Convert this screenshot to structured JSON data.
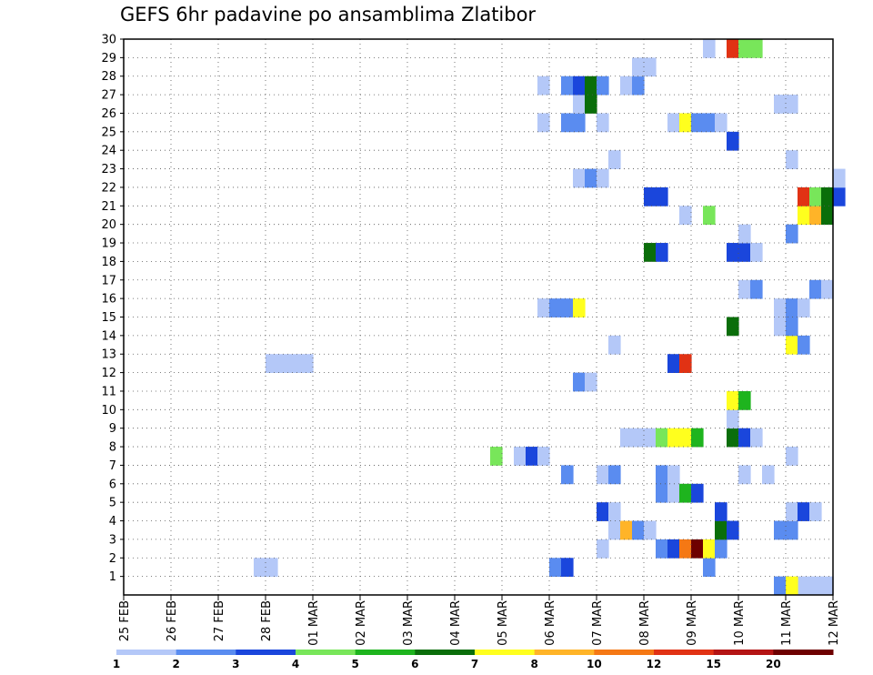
{
  "chart_data": {
    "type": "heatmap",
    "title": "GEFS 6hr padavine po ansamblima Zlatibor",
    "x_tick_labels": [
      "25 FEB",
      "26 FEB",
      "27 FEB",
      "28 FEB",
      "01 MAR",
      "02 MAR",
      "03 MAR",
      "04 MAR",
      "05 MAR",
      "06 MAR",
      "07 MAR",
      "08 MAR",
      "09 MAR",
      "10 MAR",
      "11 MAR",
      "12 MAR"
    ],
    "y_tick_labels": [
      "1",
      "2",
      "3",
      "4",
      "5",
      "6",
      "7",
      "8",
      "9",
      "10",
      "11",
      "12",
      "13",
      "14",
      "15",
      "16",
      "17",
      "18",
      "19",
      "20",
      "21",
      "22",
      "23",
      "24",
      "25",
      "26",
      "27",
      "28",
      "29",
      "30"
    ],
    "xlim_steps": [
      0,
      60
    ],
    "ylim": [
      0,
      30
    ],
    "x_step_hours": 6,
    "grid": true,
    "color_levels": {
      "labels": [
        "1",
        "2",
        "3",
        "4",
        "5",
        "6",
        "7",
        "8",
        "10",
        "12",
        "15",
        "20"
      ],
      "colors": [
        "#b4c8f8",
        "#5a8cf0",
        "#1a46dc",
        "#78e65a",
        "#1eb41e",
        "#0a6e0a",
        "#ffff1e",
        "#ffb428",
        "#f57814",
        "#e13214",
        "#b41414",
        "#6e0000"
      ]
    },
    "cells": [
      [
        57,
        0,
        "#b4c8f8"
      ],
      [
        58,
        0,
        "#b4c8f8"
      ],
      [
        59,
        0,
        "#b4c8f8"
      ],
      [
        55,
        0,
        "#5a8cf0"
      ],
      [
        56,
        0,
        "#ffff1e"
      ],
      [
        11,
        1,
        "#b4c8f8"
      ],
      [
        12,
        1,
        "#b4c8f8"
      ],
      [
        36,
        1,
        "#5a8cf0"
      ],
      [
        37,
        1,
        "#1a46dc"
      ],
      [
        49,
        1,
        "#5a8cf0"
      ],
      [
        40,
        2,
        "#b4c8f8"
      ],
      [
        45,
        2,
        "#5a8cf0"
      ],
      [
        46,
        2,
        "#1a46dc"
      ],
      [
        47,
        2,
        "#f57814"
      ],
      [
        48,
        2,
        "#6e0000"
      ],
      [
        49,
        2,
        "#ffff1e"
      ],
      [
        50,
        2,
        "#5a8cf0"
      ],
      [
        41,
        3,
        "#b4c8f8"
      ],
      [
        42,
        3,
        "#ffb428"
      ],
      [
        43,
        3,
        "#5a8cf0"
      ],
      [
        44,
        3,
        "#b4c8f8"
      ],
      [
        50,
        3,
        "#0a6e0a"
      ],
      [
        51,
        3,
        "#1a46dc"
      ],
      [
        55,
        3,
        "#5a8cf0"
      ],
      [
        56,
        3,
        "#5a8cf0"
      ],
      [
        40,
        4,
        "#1a46dc"
      ],
      [
        41,
        4,
        "#b4c8f8"
      ],
      [
        50,
        4,
        "#1a46dc"
      ],
      [
        56,
        4,
        "#b4c8f8"
      ],
      [
        57,
        4,
        "#1a46dc"
      ],
      [
        58,
        4,
        "#b4c8f8"
      ],
      [
        45,
        5,
        "#5a8cf0"
      ],
      [
        46,
        5,
        "#b4c8f8"
      ],
      [
        47,
        5,
        "#1eb41e"
      ],
      [
        48,
        5,
        "#1a46dc"
      ],
      [
        37,
        6,
        "#5a8cf0"
      ],
      [
        40,
        6,
        "#b4c8f8"
      ],
      [
        41,
        6,
        "#5a8cf0"
      ],
      [
        45,
        6,
        "#5a8cf0"
      ],
      [
        46,
        6,
        "#b4c8f8"
      ],
      [
        52,
        6,
        "#b4c8f8"
      ],
      [
        54,
        6,
        "#b4c8f8"
      ],
      [
        31,
        7,
        "#78e65a"
      ],
      [
        33,
        7,
        "#b4c8f8"
      ],
      [
        34,
        7,
        "#1a46dc"
      ],
      [
        35,
        7,
        "#b4c8f8"
      ],
      [
        56,
        7,
        "#b4c8f8"
      ],
      [
        42,
        8,
        "#b4c8f8"
      ],
      [
        43,
        8,
        "#b4c8f8"
      ],
      [
        44,
        8,
        "#b4c8f8"
      ],
      [
        45,
        8,
        "#78e65a"
      ],
      [
        46,
        8,
        "#ffff1e"
      ],
      [
        47,
        8,
        "#ffff1e"
      ],
      [
        48,
        8,
        "#1eb41e"
      ],
      [
        51,
        8,
        "#0a6e0a"
      ],
      [
        52,
        8,
        "#1a46dc"
      ],
      [
        53,
        8,
        "#b4c8f8"
      ],
      [
        51,
        9,
        "#b4c8f8"
      ],
      [
        51,
        10,
        "#ffff1e"
      ],
      [
        52,
        10,
        "#1eb41e"
      ],
      [
        38,
        11,
        "#5a8cf0"
      ],
      [
        39,
        11,
        "#b4c8f8"
      ],
      [
        12,
        12,
        "#b4c8f8"
      ],
      [
        13,
        12,
        "#b4c8f8"
      ],
      [
        14,
        12,
        "#b4c8f8"
      ],
      [
        15,
        12,
        "#b4c8f8"
      ],
      [
        46,
        12,
        "#1a46dc"
      ],
      [
        47,
        12,
        "#e13214"
      ],
      [
        41,
        13,
        "#b4c8f8"
      ],
      [
        56,
        13,
        "#ffff1e"
      ],
      [
        57,
        13,
        "#5a8cf0"
      ],
      [
        51,
        14,
        "#0a6e0a"
      ],
      [
        55,
        14,
        "#b4c8f8"
      ],
      [
        56,
        14,
        "#5a8cf0"
      ],
      [
        35,
        15,
        "#b4c8f8"
      ],
      [
        36,
        15,
        "#5a8cf0"
      ],
      [
        37,
        15,
        "#5a8cf0"
      ],
      [
        38,
        15,
        "#ffff1e"
      ],
      [
        55,
        15,
        "#b4c8f8"
      ],
      [
        56,
        15,
        "#5a8cf0"
      ],
      [
        57,
        15,
        "#b4c8f8"
      ],
      [
        52,
        16,
        "#b4c8f8"
      ],
      [
        53,
        16,
        "#5a8cf0"
      ],
      [
        58,
        16,
        "#5a8cf0"
      ],
      [
        59,
        16,
        "#b4c8f8"
      ],
      [
        44,
        18,
        "#0a6e0a"
      ],
      [
        45,
        18,
        "#1a46dc"
      ],
      [
        51,
        18,
        "#1a46dc"
      ],
      [
        52,
        18,
        "#1a46dc"
      ],
      [
        53,
        18,
        "#b4c8f8"
      ],
      [
        52,
        19,
        "#b4c8f8"
      ],
      [
        56,
        19,
        "#5a8cf0"
      ],
      [
        47,
        20,
        "#b4c8f8"
      ],
      [
        49,
        20,
        "#78e65a"
      ],
      [
        57,
        20,
        "#ffff1e"
      ],
      [
        58,
        20,
        "#ffb428"
      ],
      [
        59,
        20,
        "#0a6e0a"
      ],
      [
        44,
        21,
        "#1a46dc"
      ],
      [
        45,
        21,
        "#1a46dc"
      ],
      [
        57,
        21,
        "#e13214"
      ],
      [
        58,
        21,
        "#78e65a"
      ],
      [
        59,
        21,
        "#0a6e0a"
      ],
      [
        60,
        21,
        "#1a46dc"
      ],
      [
        38,
        22,
        "#b4c8f8"
      ],
      [
        39,
        22,
        "#5a8cf0"
      ],
      [
        40,
        22,
        "#b4c8f8"
      ],
      [
        60,
        22,
        "#b4c8f8"
      ],
      [
        41,
        23,
        "#b4c8f8"
      ],
      [
        56,
        23,
        "#b4c8f8"
      ],
      [
        51,
        24,
        "#1a46dc"
      ],
      [
        35,
        25,
        "#b4c8f8"
      ],
      [
        37,
        25,
        "#5a8cf0"
      ],
      [
        38,
        25,
        "#5a8cf0"
      ],
      [
        40,
        25,
        "#b4c8f8"
      ],
      [
        46,
        25,
        "#b4c8f8"
      ],
      [
        47,
        25,
        "#ffff1e"
      ],
      [
        48,
        25,
        "#5a8cf0"
      ],
      [
        49,
        25,
        "#5a8cf0"
      ],
      [
        50,
        25,
        "#b4c8f8"
      ],
      [
        38,
        26,
        "#b4c8f8"
      ],
      [
        39,
        26,
        "#0a6e0a"
      ],
      [
        55,
        26,
        "#b4c8f8"
      ],
      [
        56,
        26,
        "#b4c8f8"
      ],
      [
        35,
        27,
        "#b4c8f8"
      ],
      [
        37,
        27,
        "#5a8cf0"
      ],
      [
        38,
        27,
        "#1a46dc"
      ],
      [
        39,
        27,
        "#0a6e0a"
      ],
      [
        40,
        27,
        "#5a8cf0"
      ],
      [
        42,
        27,
        "#b4c8f8"
      ],
      [
        43,
        27,
        "#5a8cf0"
      ],
      [
        43,
        28,
        "#b4c8f8"
      ],
      [
        44,
        28,
        "#b4c8f8"
      ],
      [
        49,
        29,
        "#b4c8f8"
      ],
      [
        51,
        29,
        "#e13214"
      ],
      [
        52,
        29,
        "#78e65a"
      ],
      [
        53,
        29,
        "#78e65a"
      ]
    ]
  }
}
